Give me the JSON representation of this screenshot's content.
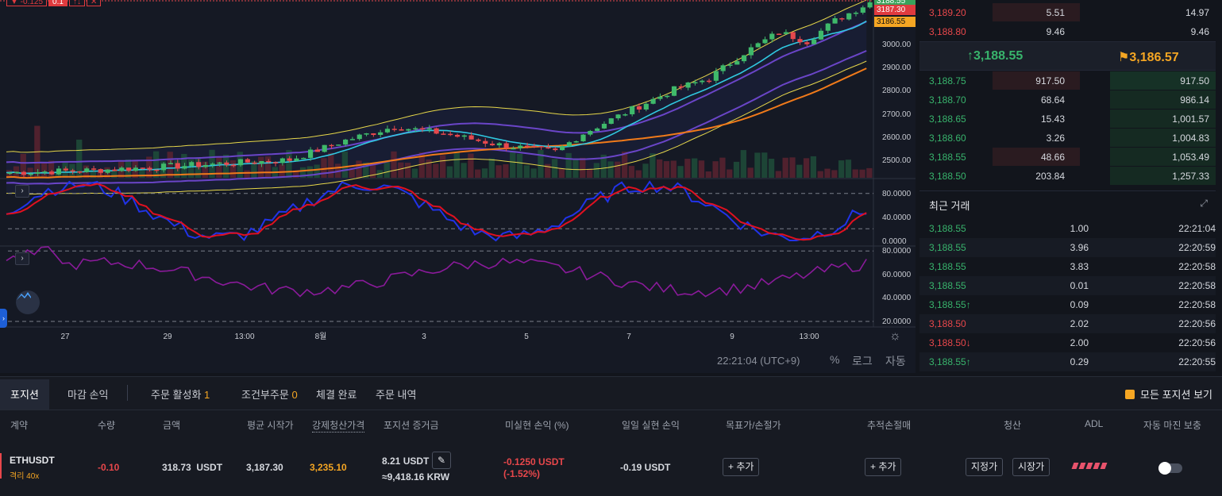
{
  "chart": {
    "top_badges": [
      "▼ -0.125",
      "0.1",
      "↑↓",
      "✕"
    ],
    "price_axis_labels": [
      "3000.00",
      "2900.00",
      "2800.00",
      "2700.00",
      "2600.00",
      "2500.00"
    ],
    "price_tags": {
      "top": "3188.55",
      "red": "3187.30",
      "orange": "3186.55"
    },
    "osc1_axis_labels": [
      "80.0000",
      "40.0000",
      "0.0000"
    ],
    "osc2_axis_labels": [
      "80.0000",
      "60.0000",
      "40.0000",
      "20.0000"
    ],
    "date_labels": [
      "27",
      "29",
      "13:00",
      "8월",
      "3",
      "5",
      "7",
      "9",
      "13:00"
    ],
    "panel_toggle": "›",
    "footer": {
      "clock": "22:21:04 (UTC+9)",
      "percent": "%",
      "log": "로그",
      "auto": "자동"
    }
  },
  "orderbook": {
    "asks": [
      {
        "price": "3,189.20",
        "qty": "5.51",
        "total": "14.97"
      },
      {
        "price": "3,188.80",
        "qty": "9.46",
        "total": "9.46"
      }
    ],
    "mid": {
      "last": "3,188.55",
      "mark": "3,186.57"
    },
    "bids": [
      {
        "price": "3,188.75",
        "qty": "917.50",
        "total": "917.50"
      },
      {
        "price": "3,188.70",
        "qty": "68.64",
        "total": "986.14"
      },
      {
        "price": "3,188.65",
        "qty": "15.43",
        "total": "1,001.57"
      },
      {
        "price": "3,188.60",
        "qty": "3.26",
        "total": "1,004.83"
      },
      {
        "price": "3,188.55",
        "qty": "48.66",
        "total": "1,053.49"
      },
      {
        "price": "3,188.50",
        "qty": "203.84",
        "total": "1,257.33"
      }
    ]
  },
  "trades": {
    "title": "최근 거래",
    "rows": [
      {
        "price": "3,188.55",
        "qty": "1.00",
        "time": "22:21:04",
        "side": "buy",
        "arrow": ""
      },
      {
        "price": "3,188.55",
        "qty": "3.96",
        "time": "22:20:59",
        "side": "buy",
        "arrow": ""
      },
      {
        "price": "3,188.55",
        "qty": "3.83",
        "time": "22:20:58",
        "side": "buy",
        "arrow": ""
      },
      {
        "price": "3,188.55",
        "qty": "0.01",
        "time": "22:20:58",
        "side": "buy",
        "arrow": ""
      },
      {
        "price": "3,188.55",
        "qty": "0.09",
        "time": "22:20:58",
        "side": "buy",
        "arrow": "↑"
      },
      {
        "price": "3,188.50",
        "qty": "2.02",
        "time": "22:20:56",
        "side": "sell",
        "arrow": ""
      },
      {
        "price": "3,188.50",
        "qty": "2.00",
        "time": "22:20:56",
        "side": "sell",
        "arrow": "↓"
      },
      {
        "price": "3,188.55",
        "qty": "0.29",
        "time": "22:20:55",
        "side": "buy",
        "arrow": "↑"
      }
    ]
  },
  "tabs": {
    "positions": "포지션",
    "closed_pnl": "마감 손익",
    "active_orders": "주문 활성화",
    "active_orders_count": "1",
    "conditional": "조건부주문",
    "conditional_count": "0",
    "filled": "체결 완료",
    "history": "주문 내역",
    "show_all": "모든 포지션 보기"
  },
  "columns": {
    "contract": "계약",
    "qty": "수량",
    "value": "금액",
    "entry": "평균 시작가",
    "liq": "강제청산가격",
    "margin": "포지션 증거금",
    "upnl": "미실현 손익 (%)",
    "rpnl": "일일 실현 손익",
    "tpsl": "목표가/손절가",
    "trailing": "추적손절매",
    "close": "청산",
    "adl": "ADL",
    "auto_margin": "자동 마진 보충"
  },
  "position": {
    "symbol": "ETHUSDT",
    "leverage": "격리 40x",
    "qty": "-0.10",
    "value": "318.73",
    "value_unit": "USDT",
    "entry": "3,187.30",
    "liq": "3,235.10",
    "margin": "8.21 USDT",
    "margin_krw": "≈9,418.16 KRW",
    "upnl": "-0.1250 USDT",
    "upnl_pct": "(-1.52%)",
    "rpnl": "-0.19 USDT",
    "tpsl_btn": "+ 추가",
    "trailing_btn": "+ 추가",
    "limit_btn": "지정가",
    "market_btn": "시장가"
  },
  "colors": {
    "up": "#38b46c",
    "down": "#e8474b",
    "accent": "#f5a623"
  }
}
